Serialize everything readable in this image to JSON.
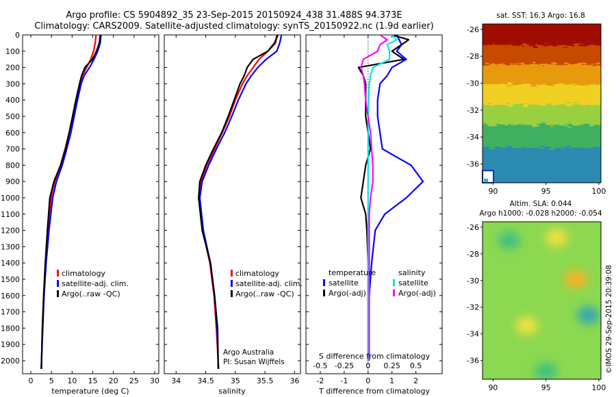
{
  "header": {
    "title_line1": "Argo profile: CS 5904892_35 23-Sep-2015 20150924_438 31.488S 94.373E",
    "title_line2": "Climatology: CARS2009. Satellite-adjusted climatology: synTS_20150922.nc (1.9d earlier)"
  },
  "colors": {
    "climatology": "#ff0000",
    "satellite": "#0000ff",
    "argo": "#000000",
    "sat_salinity": "#00e5e5",
    "argo_salinity": "#ff00ff"
  },
  "depth_ticks": [
    "0",
    "100",
    "200",
    "300",
    "400",
    "500",
    "600",
    "700",
    "800",
    "900",
    "1000",
    "1100",
    "1200",
    "1300",
    "1400",
    "1500",
    "1600",
    "1700",
    "1800",
    "1900",
    "2000"
  ],
  "chart_data": [
    {
      "type": "line",
      "xlabel": "temperature (deg C)",
      "xlim": [
        -2,
        31
      ],
      "ylim": [
        2080,
        0
      ],
      "x_ticks": [
        "0",
        "5",
        "10",
        "15",
        "20",
        "25",
        "30"
      ],
      "legend": [
        "climatology",
        "satellite-adj. clim.",
        "Argo(..raw -QC)"
      ],
      "depth": [
        0,
        50,
        100,
        150,
        200,
        250,
        300,
        400,
        500,
        600,
        700,
        800,
        900,
        1000,
        1200,
        1400,
        1600,
        1800,
        2000,
        2050
      ],
      "series": [
        {
          "name": "climatology",
          "values": [
            15.8,
            15.6,
            15.2,
            14.5,
            13.5,
            12.5,
            11.9,
            11.0,
            10.2,
            9.3,
            8.3,
            7.2,
            5.8,
            4.9,
            4.1,
            3.5,
            3.1,
            2.8,
            2.6,
            2.5
          ]
        },
        {
          "name": "satellite-adj. clim.",
          "values": [
            17.0,
            16.8,
            16.2,
            15.3,
            14.2,
            12.9,
            12.2,
            11.3,
            10.5,
            9.7,
            8.7,
            7.6,
            6.2,
            5.3,
            4.4,
            3.7,
            3.2,
            2.9,
            2.6,
            2.5
          ]
        },
        {
          "name": "Argo(..raw -QC)",
          "values": [
            16.8,
            16.6,
            15.9,
            14.9,
            13.1,
            12.3,
            11.8,
            10.9,
            10.1,
            9.3,
            8.4,
            7.2,
            5.6,
            4.6,
            4.0,
            3.5,
            3.1,
            2.8,
            2.6,
            2.6
          ]
        }
      ]
    },
    {
      "type": "line",
      "xlabel": "salinity",
      "xlim": [
        33.8,
        36.1
      ],
      "ylim": [
        2080,
        0
      ],
      "x_ticks": [
        "34",
        "34.5",
        "35",
        "35.5",
        "36"
      ],
      "legend": [
        "climatology",
        "satellite-adj. clim.",
        "Argo(..raw -QC)"
      ],
      "annotation": [
        "Argo Australia",
        "PI: Susan Wijffels"
      ],
      "depth": [
        0,
        50,
        100,
        150,
        200,
        250,
        300,
        400,
        500,
        600,
        700,
        800,
        900,
        1000,
        1200,
        1400,
        1600,
        1800,
        2000,
        2050
      ],
      "series": [
        {
          "name": "climatology",
          "values": [
            35.7,
            35.68,
            35.55,
            35.4,
            35.3,
            35.2,
            35.12,
            35.0,
            34.9,
            34.78,
            34.65,
            34.52,
            34.42,
            34.38,
            34.45,
            34.57,
            34.64,
            34.68,
            34.71,
            34.72
          ]
        },
        {
          "name": "satellite-adj. clim.",
          "values": [
            35.78,
            35.75,
            35.7,
            35.52,
            35.38,
            35.27,
            35.18,
            35.05,
            34.94,
            34.82,
            34.68,
            34.55,
            34.44,
            34.4,
            34.46,
            34.58,
            34.65,
            34.69,
            34.71,
            34.71
          ]
        },
        {
          "name": "Argo(..raw -QC)",
          "values": [
            35.72,
            35.66,
            35.55,
            35.3,
            35.2,
            35.15,
            35.08,
            34.98,
            34.88,
            34.77,
            34.63,
            34.5,
            34.4,
            34.38,
            34.44,
            34.58,
            34.65,
            34.7,
            34.71,
            34.71
          ]
        }
      ]
    },
    {
      "type": "line",
      "xlabel": "T difference from climatology",
      "x2label": "S difference from climatology",
      "xlim": [
        -2.6,
        3.1
      ],
      "x2lim": [
        -0.65,
        0.775
      ],
      "ylim": [
        2080,
        0
      ],
      "x_ticks": [
        "-2",
        "-1",
        "0",
        "1",
        "2"
      ],
      "x2_ticks": [
        "-0.5",
        "-0.25",
        "0",
        "0.25",
        "0.5"
      ],
      "legend_groups": [
        {
          "title": "temperature",
          "entries": [
            "satellite",
            "Argo(-adj)"
          ]
        },
        {
          "title": "salinity",
          "entries": [
            "satellite",
            "Argo(-adj)"
          ]
        }
      ],
      "depth": [
        0,
        30,
        60,
        100,
        150,
        200,
        250,
        300,
        400,
        500,
        600,
        700,
        800,
        900,
        1000,
        1100,
        1200,
        1400,
        1600,
        1800,
        2000
      ],
      "series": [
        {
          "name": "temperature satellite",
          "values": [
            1.2,
            1.3,
            1.4,
            1.2,
            1.6,
            1.0,
            0.8,
            0.5,
            0.4,
            0.4,
            0.5,
            0.6,
            1.8,
            2.3,
            1.6,
            0.7,
            0.3,
            0.15,
            0.05,
            0.02,
            0.0
          ]
        },
        {
          "name": "temperature Argo(-adj)",
          "values": [
            1.0,
            1.7,
            1.4,
            1.0,
            1.5,
            -0.4,
            -0.2,
            -0.1,
            -0.1,
            -0.1,
            0.0,
            0.1,
            -0.1,
            -0.2,
            -0.3,
            -0.1,
            -0.05,
            0.0,
            0.0,
            0.0,
            0.0
          ]
        },
        {
          "name": "salinity satellite",
          "values": [
            1.0,
            1.2,
            0.8,
            0.9,
            0.9,
            0.2,
            0.1,
            0.05,
            0.02,
            0.0,
            0.0,
            0.0,
            0.0,
            0.0,
            0.0,
            0.0,
            0.0,
            0.0,
            0.0,
            0.0,
            0.0
          ]
        },
        {
          "name": "salinity Argo(-adj)",
          "values": [
            0.5,
            0.8,
            0.5,
            0.4,
            -0.2,
            -0.3,
            -0.2,
            -0.15,
            -0.1,
            0.0,
            0.1,
            0.15,
            0.2,
            0.2,
            0.1,
            0.05,
            0.05,
            0.05,
            0.05,
            0.05,
            0.05
          ]
        }
      ]
    },
    {
      "type": "heatmap",
      "title": "sat. SST: 16.3 Argo: 16.8",
      "xlim": [
        89,
        100.2
      ],
      "ylim": [
        -37.4,
        -25.6
      ],
      "x_ticks": [
        "90",
        "95",
        "100"
      ],
      "y_ticks": [
        "-26",
        "-28",
        "-30",
        "-32",
        "-34",
        "-36"
      ],
      "bands": [
        {
          "lat_top": -25.6,
          "lat_bottom": -27.4,
          "color": "#a01000"
        },
        {
          "lat_top": -27.4,
          "lat_bottom": -28.8,
          "color": "#c84a00"
        },
        {
          "lat_top": -28.8,
          "lat_bottom": -30.3,
          "color": "#e89a10"
        },
        {
          "lat_top": -30.3,
          "lat_bottom": -31.8,
          "color": "#f0d020"
        },
        {
          "lat_top": -31.8,
          "lat_bottom": -33.3,
          "color": "#9ad040"
        },
        {
          "lat_top": -33.3,
          "lat_bottom": -35.0,
          "color": "#40b060"
        },
        {
          "lat_top": -35.0,
          "lat_bottom": -37.4,
          "color": "#2a8ab0"
        }
      ],
      "argo_location": {
        "lon": 94.373,
        "lat": -31.488
      }
    },
    {
      "type": "heatmap",
      "title_line1": "Altim. SLA: 0.044",
      "title_line2": "Argo h1000: -0.028 h2000: -0.054",
      "xlim": [
        89,
        100.2
      ],
      "ylim": [
        -37.4,
        -25.6
      ],
      "x_ticks": [
        "90",
        "95",
        "100"
      ],
      "y_ticks": [
        "-26",
        "-28",
        "-30",
        "-32",
        "-34",
        "-36"
      ],
      "base_color": "#8cd850",
      "blobs": [
        {
          "lon": 97.8,
          "lat": -29.9,
          "color": "#ffb020"
        },
        {
          "lon": 96.0,
          "lat": -26.8,
          "color": "#f4e040"
        },
        {
          "lon": 93.2,
          "lat": -33.4,
          "color": "#f4e040"
        },
        {
          "lon": 91.5,
          "lat": -27.0,
          "color": "#40c080"
        },
        {
          "lon": 99.0,
          "lat": -32.6,
          "color": "#30a8b0"
        },
        {
          "lon": 95.0,
          "lat": -36.8,
          "color": "#40c080"
        }
      ]
    }
  ],
  "credit": "©IMOS 29-Sep-2015 20:39:08"
}
